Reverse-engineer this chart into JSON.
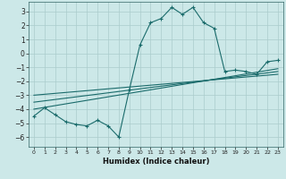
{
  "xlabel": "Humidex (Indice chaleur)",
  "ylabel": "",
  "background_color": "#cce8e8",
  "grid_color": "#aacccc",
  "line_color": "#1a6b6b",
  "xlim": [
    -0.5,
    23.5
  ],
  "ylim": [
    -6.7,
    3.7
  ],
  "xticks": [
    0,
    1,
    2,
    3,
    4,
    5,
    6,
    7,
    8,
    9,
    10,
    11,
    12,
    13,
    14,
    15,
    16,
    17,
    18,
    19,
    20,
    21,
    22,
    23
  ],
  "yticks": [
    -6,
    -5,
    -4,
    -3,
    -2,
    -1,
    0,
    1,
    2,
    3
  ],
  "series1_x": [
    0,
    1,
    2,
    3,
    4,
    5,
    6,
    7,
    8,
    9,
    10,
    11,
    12,
    13,
    14,
    15,
    16,
    17,
    18,
    19,
    20,
    21,
    22,
    23
  ],
  "series1_y": [
    -4.5,
    -3.9,
    -4.4,
    -4.9,
    -5.1,
    -5.2,
    -4.8,
    -5.2,
    -6.0,
    -2.6,
    0.6,
    2.2,
    2.5,
    3.3,
    2.8,
    3.3,
    2.2,
    1.8,
    -1.3,
    -1.2,
    -1.3,
    -1.5,
    -0.6,
    -0.5
  ],
  "series2_x": [
    0,
    23
  ],
  "series2_y": [
    -3.5,
    -1.3
  ],
  "series3_x": [
    0,
    23
  ],
  "series3_y": [
    -3.0,
    -1.5
  ],
  "series4_x": [
    0,
    23
  ],
  "series4_y": [
    -4.0,
    -1.1
  ]
}
